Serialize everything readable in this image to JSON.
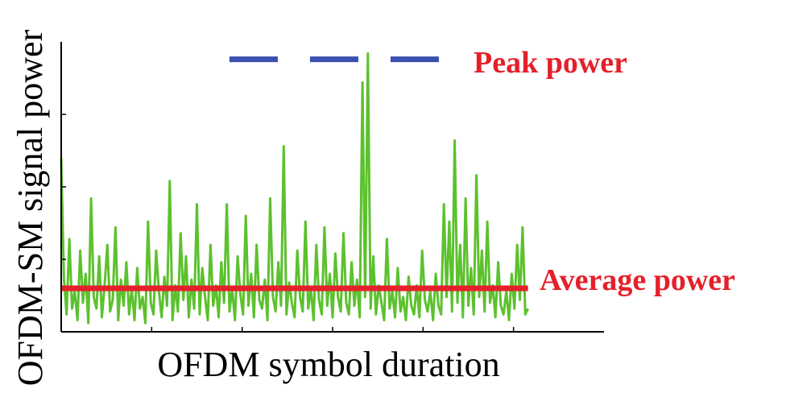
{
  "chart_data": {
    "type": "line",
    "title": "",
    "xlabel": "OFDM symbol duration",
    "ylabel": "OFDM-SM signal power",
    "xlim": [
      0,
      1
    ],
    "ylim": [
      0,
      1
    ],
    "x_ticks_shown": false,
    "y_ticks_shown": false,
    "grid": false,
    "legend": "none",
    "series": [
      {
        "kind": "signal",
        "color": "#5cc12e",
        "x": [
          0.0,
          0.005,
          0.01,
          0.015,
          0.02,
          0.025,
          0.03,
          0.035,
          0.04,
          0.045,
          0.05,
          0.055,
          0.06,
          0.065,
          0.07,
          0.075,
          0.08,
          0.085,
          0.09,
          0.095,
          0.1,
          0.105,
          0.11,
          0.115,
          0.12,
          0.125,
          0.13,
          0.135,
          0.14,
          0.145,
          0.15,
          0.155,
          0.16,
          0.165,
          0.17,
          0.175,
          0.18,
          0.185,
          0.19,
          0.195,
          0.2,
          0.205,
          0.21,
          0.215,
          0.22,
          0.225,
          0.23,
          0.235,
          0.24,
          0.245,
          0.25,
          0.255,
          0.26,
          0.265,
          0.27,
          0.275,
          0.28,
          0.285,
          0.29,
          0.295,
          0.3,
          0.305,
          0.31,
          0.315,
          0.32,
          0.325,
          0.33,
          0.335,
          0.34,
          0.345,
          0.35,
          0.355,
          0.36,
          0.365,
          0.37,
          0.375,
          0.38,
          0.385,
          0.39,
          0.395,
          0.4,
          0.405,
          0.41,
          0.415,
          0.42,
          0.425,
          0.43,
          0.435,
          0.44,
          0.445,
          0.45,
          0.455,
          0.46,
          0.465,
          0.47,
          0.475,
          0.48,
          0.485,
          0.49,
          0.495,
          0.5,
          0.505,
          0.51,
          0.515,
          0.52,
          0.525,
          0.53,
          0.535,
          0.54,
          0.545,
          0.55,
          0.555,
          0.56,
          0.565,
          0.57,
          0.575,
          0.58,
          0.585,
          0.59,
          0.595,
          0.6,
          0.605,
          0.61,
          0.615,
          0.62,
          0.625,
          0.63,
          0.635,
          0.64,
          0.645,
          0.65,
          0.655,
          0.66,
          0.665,
          0.67,
          0.675,
          0.68,
          0.685,
          0.69,
          0.695,
          0.7,
          0.705,
          0.71,
          0.715,
          0.72,
          0.725,
          0.73,
          0.735,
          0.74,
          0.745,
          0.75,
          0.755,
          0.76,
          0.765,
          0.77,
          0.775,
          0.78,
          0.785,
          0.79,
          0.795,
          0.8,
          0.805,
          0.81,
          0.815,
          0.82,
          0.825,
          0.83,
          0.835,
          0.84,
          0.845,
          0.85,
          0.855,
          0.86
        ],
        "y": [
          0.6,
          0.18,
          0.06,
          0.32,
          0.08,
          0.14,
          0.04,
          0.28,
          0.1,
          0.2,
          0.03,
          0.46,
          0.12,
          0.08,
          0.26,
          0.05,
          0.16,
          0.3,
          0.07,
          0.11,
          0.36,
          0.04,
          0.18,
          0.09,
          0.24,
          0.06,
          0.15,
          0.04,
          0.22,
          0.08,
          0.12,
          0.03,
          0.38,
          0.1,
          0.06,
          0.28,
          0.14,
          0.05,
          0.19,
          0.09,
          0.52,
          0.04,
          0.16,
          0.07,
          0.34,
          0.11,
          0.26,
          0.05,
          0.18,
          0.08,
          0.44,
          0.06,
          0.22,
          0.12,
          0.04,
          0.3,
          0.09,
          0.16,
          0.05,
          0.24,
          0.1,
          0.44,
          0.07,
          0.15,
          0.04,
          0.26,
          0.13,
          0.06,
          0.4,
          0.09,
          0.2,
          0.05,
          0.3,
          0.11,
          0.08,
          0.18,
          0.04,
          0.46,
          0.12,
          0.07,
          0.24,
          0.09,
          0.64,
          0.06,
          0.17,
          0.1,
          0.05,
          0.28,
          0.12,
          0.07,
          0.38,
          0.08,
          0.15,
          0.04,
          0.3,
          0.11,
          0.06,
          0.36,
          0.09,
          0.2,
          0.05,
          0.27,
          0.12,
          0.07,
          0.34,
          0.1,
          0.06,
          0.24,
          0.09,
          0.18,
          0.05,
          0.86,
          0.12,
          0.96,
          0.08,
          0.26,
          0.06,
          0.16,
          0.1,
          0.04,
          0.32,
          0.08,
          0.14,
          0.05,
          0.22,
          0.07,
          0.12,
          0.04,
          0.19,
          0.09,
          0.06,
          0.16,
          0.05,
          0.28,
          0.11,
          0.07,
          0.14,
          0.04,
          0.2,
          0.09,
          0.06,
          0.44,
          0.12,
          0.38,
          0.07,
          0.66,
          0.1,
          0.3,
          0.05,
          0.46,
          0.09,
          0.22,
          0.06,
          0.54,
          0.12,
          0.28,
          0.07,
          0.38,
          0.1,
          0.16,
          0.05,
          0.24,
          0.09,
          0.06,
          0.14,
          0.04,
          0.2,
          0.08,
          0.3,
          0.11,
          0.36,
          0.06,
          0.08
        ]
      },
      {
        "kind": "average",
        "name": "Average power",
        "color": "#e4202a",
        "y": 0.15,
        "x_range": [
          0,
          0.86
        ]
      },
      {
        "kind": "peak",
        "name": "Peak power",
        "color": "#3b4fae",
        "y": 0.94,
        "x_range": [
          0.31,
          0.7
        ]
      }
    ],
    "annotations": {
      "peak_label": "Peak power",
      "average_label": "Average power"
    },
    "colors": {
      "signal": "#5cc12e",
      "average": "#e4202a",
      "peak": "#3b4fae",
      "axis": "#000000"
    }
  }
}
